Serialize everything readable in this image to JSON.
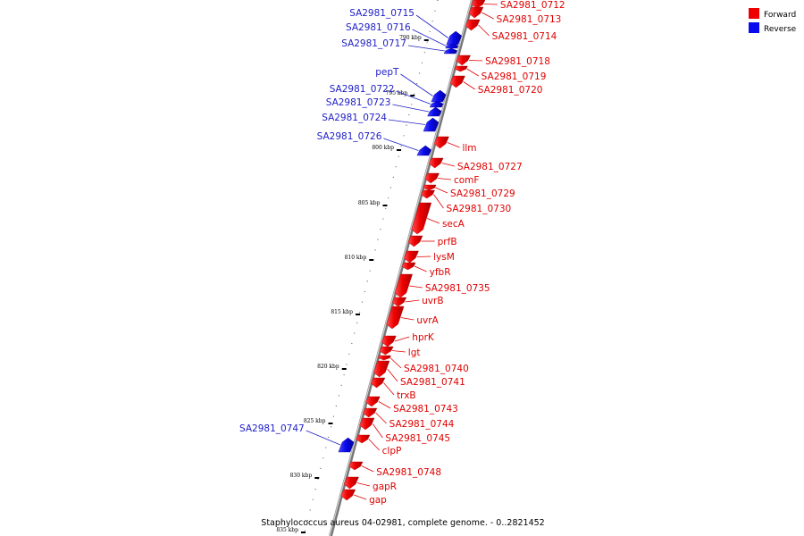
{
  "legend": {
    "forward_label": "Forward",
    "reverse_label": "Reverse",
    "forward_color": "#ee0000",
    "reverse_color": "#0a0aee"
  },
  "footer": "Staphylococcus aureus 04-02981, complete genome. - 0..2821452",
  "scale": {
    "ticks": [
      "790 kbp",
      "795 kbp",
      "800 kbp",
      "805 kbp",
      "810 kbp",
      "815 kbp",
      "820 kbp",
      "825 kbp",
      "830 kbp",
      "835 kbp"
    ]
  },
  "reverse_genes": [
    "SA2981_0715",
    "SA2981_0716",
    "SA2981_0717",
    "pepT",
    "SA2981_0722",
    "SA2981_0723",
    "SA2981_0724",
    "SA2981_0726",
    "SA2981_0747"
  ],
  "forward_genes": [
    "SA2981_0712",
    "SA2981_0713",
    "SA2981_0714",
    "SA2981_0718",
    "SA2981_0719",
    "SA2981_0720",
    "llm",
    "SA2981_0727",
    "comF",
    "SA2981_0729",
    "SA2981_0730",
    "secA",
    "prfB",
    "lysM",
    "yfbR",
    "SA2981_0735",
    "uvrB",
    "uvrA",
    "hprK",
    "lgt",
    "SA2981_0740",
    "SA2981_0741",
    "trxB",
    "SA2981_0743",
    "SA2981_0744",
    "SA2981_0745",
    "clpP",
    "SA2981_0748",
    "gapR",
    "gap"
  ]
}
